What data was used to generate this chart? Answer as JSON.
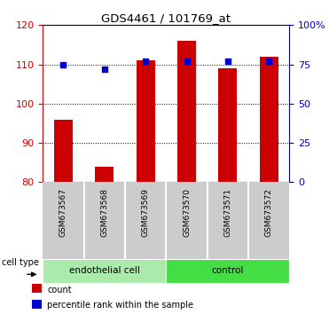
{
  "title": "GDS4461 / 101769_at",
  "samples": [
    "GSM673567",
    "GSM673568",
    "GSM673569",
    "GSM673570",
    "GSM673571",
    "GSM673572"
  ],
  "bar_values": [
    96,
    84,
    111,
    116,
    109,
    112
  ],
  "percentile_values": [
    75,
    72,
    77,
    77,
    77,
    77
  ],
  "ylim_left": [
    80,
    120
  ],
  "ylim_right": [
    0,
    100
  ],
  "yticks_left": [
    80,
    90,
    100,
    110,
    120
  ],
  "yticks_right": [
    0,
    25,
    50,
    75,
    100
  ],
  "ytick_labels_right": [
    "0",
    "25",
    "50",
    "75",
    "100%"
  ],
  "bar_color": "#cc0000",
  "dot_color": "#0000cc",
  "bar_bottom": 80,
  "cell_type_groups": [
    {
      "label": "endothelial cell",
      "start": 0,
      "end": 3,
      "color": "#aaeaaa"
    },
    {
      "label": "control",
      "start": 3,
      "end": 6,
      "color": "#44dd44"
    }
  ],
  "cell_type_label": "cell type",
  "legend_items": [
    {
      "color": "#cc0000",
      "label": "count"
    },
    {
      "color": "#0000cc",
      "label": "percentile rank within the sample"
    }
  ],
  "grid_color": "black",
  "left_tick_color": "#cc0000",
  "right_tick_color": "#0000cc",
  "bg_color": "#ffffff",
  "bar_width": 0.45,
  "xlab_bg": "#cccccc",
  "xlab_sep_color": "white",
  "plot_bg": "#ffffff"
}
